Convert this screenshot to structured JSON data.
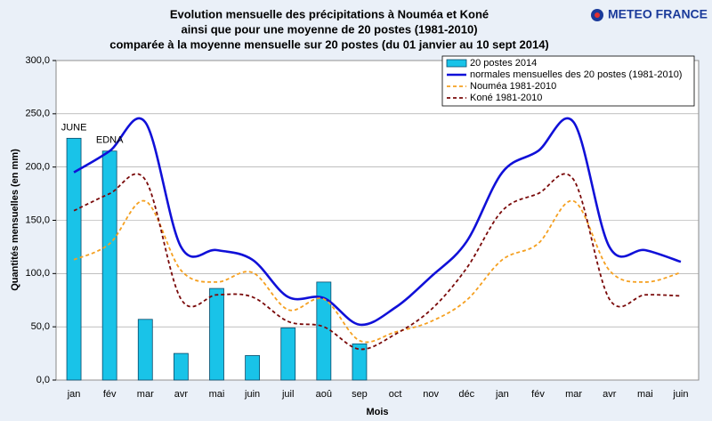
{
  "logo": "METEO FRANCE",
  "chart_data": {
    "type": "bar-line",
    "title": [
      "Evolution mensuelle des précipitations à Nouméa et Koné",
      "ainsi que pour une moyenne de 20 postes (1981-2010)",
      "comparée à la moyenne mensuelle sur 20 postes (du 01 janvier au 10 sept 2014)"
    ],
    "xlabel": "Mois",
    "ylabel": "Quantités mensuelles (en mm)",
    "annotations": [
      "JUNE",
      "EDNA"
    ],
    "categories": [
      "jan",
      "fév",
      "mar",
      "avr",
      "mai",
      "juin",
      "juil",
      "aoû",
      "sep",
      "oct",
      "nov",
      "déc",
      "jan",
      "fév",
      "mar",
      "avr",
      "mai",
      "juin"
    ],
    "ylim": [
      0,
      300
    ],
    "yticks": [
      {
        "value": 0,
        "label": "0,0"
      },
      {
        "value": 50,
        "label": "50,0"
      },
      {
        "value": 100,
        "label": "100,0"
      },
      {
        "value": 150,
        "label": "150,0"
      },
      {
        "value": 200,
        "label": "200,0"
      },
      {
        "value": 250,
        "label": "250,0"
      },
      {
        "value": 300,
        "label": "300,0"
      }
    ],
    "grid": true,
    "series": [
      {
        "name": "20 postes 2014",
        "kind": "bar",
        "color": "#19c3e8",
        "values": [
          227,
          215,
          57,
          25,
          86,
          23,
          49,
          92,
          34,
          null,
          null,
          null,
          null,
          null,
          null,
          null,
          null,
          null
        ]
      },
      {
        "name": "normales mensuelles des 20 postes (1981-2010)",
        "kind": "line",
        "dash": "solid",
        "color": "#1010d8",
        "values": [
          195,
          215,
          242,
          125,
          122,
          113,
          78,
          77,
          52,
          68,
          97,
          130,
          195,
          215,
          242,
          125,
          122,
          111
        ]
      },
      {
        "name": "Nouméa 1981-2010",
        "kind": "line",
        "dash": "dashed",
        "color": "#f5a020",
        "values": [
          113,
          128,
          168,
          103,
          92,
          101,
          66,
          76,
          37,
          45,
          55,
          75,
          113,
          128,
          168,
          103,
          92,
          101
        ]
      },
      {
        "name": "Koné 1981-2010",
        "kind": "line",
        "dash": "dashed",
        "color": "#7a0a0a",
        "values": [
          159,
          175,
          188,
          76,
          80,
          78,
          55,
          50,
          29,
          43,
          66,
          105,
          159,
          175,
          188,
          76,
          80,
          79
        ]
      }
    ]
  }
}
